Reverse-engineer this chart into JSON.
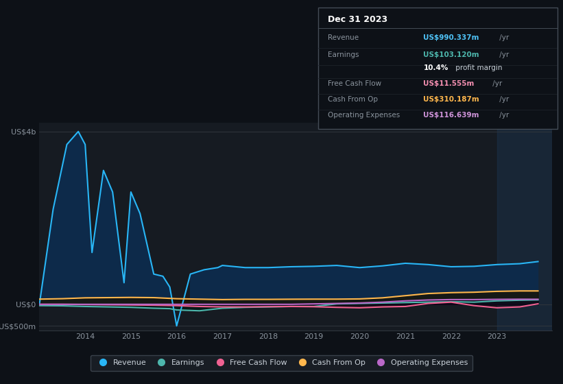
{
  "bg_color": "#0d1117",
  "plot_bg_color": "#161b22",
  "grid_color": "#30363d",
  "axis_label_color": "#8b949e",
  "text_color": "#c9d1d9",
  "white_color": "#ffffff",
  "x_tick_labels": [
    "2014",
    "2015",
    "2016",
    "2017",
    "2018",
    "2019",
    "2020",
    "2021",
    "2022",
    "2023"
  ],
  "info_box": {
    "title": "Dec 31 2023",
    "rows": [
      {
        "label": "Revenue",
        "value": "US$990.337m",
        "value_color": "#4fc3f7"
      },
      {
        "label": "Earnings",
        "value": "US$103.120m",
        "value_color": "#4db6ac"
      },
      {
        "label": "",
        "value": "10.4% profit margin",
        "value_color": "#c9d1d9"
      },
      {
        "label": "Free Cash Flow",
        "value": "US$11.555m",
        "value_color": "#f48fb1"
      },
      {
        "label": "Cash From Op",
        "value": "US$310.187m",
        "value_color": "#ffb74d"
      },
      {
        "label": "Operating Expenses",
        "value": "US$116.639m",
        "value_color": "#ce93d8"
      }
    ]
  },
  "series": {
    "revenue": {
      "color": "#29b6f6",
      "fill_color": "#0d2a4a",
      "label": "Revenue",
      "data_x": [
        2013.0,
        2013.3,
        2013.6,
        2013.85,
        2014.0,
        2014.15,
        2014.4,
        2014.6,
        2014.85,
        2015.0,
        2015.2,
        2015.5,
        2015.7,
        2015.85,
        2016.0,
        2016.3,
        2016.6,
        2016.9,
        2017.0,
        2017.5,
        2018.0,
        2018.5,
        2019.0,
        2019.5,
        2020.0,
        2020.5,
        2021.0,
        2021.5,
        2022.0,
        2022.5,
        2023.0,
        2023.5,
        2023.9
      ],
      "data_y": [
        0,
        2200,
        3700,
        4000,
        3700,
        1200,
        3100,
        2600,
        500,
        2600,
        2100,
        700,
        650,
        400,
        -500,
        700,
        800,
        850,
        900,
        850,
        850,
        870,
        880,
        900,
        850,
        890,
        950,
        920,
        870,
        880,
        920,
        940,
        990
      ]
    },
    "earnings": {
      "color": "#4db6ac",
      "label": "Earnings",
      "data_x": [
        2013.0,
        2013.5,
        2014.0,
        2014.5,
        2015.0,
        2015.5,
        2015.85,
        2016.0,
        2016.5,
        2017.0,
        2017.5,
        2018.0,
        2018.5,
        2019.0,
        2019.5,
        2020.0,
        2020.5,
        2021.0,
        2021.5,
        2022.0,
        2022.5,
        2023.0,
        2023.5,
        2023.9
      ],
      "data_y": [
        -30,
        -35,
        -50,
        -60,
        -70,
        -90,
        -100,
        -130,
        -150,
        -90,
        -70,
        -60,
        -50,
        -50,
        10,
        20,
        30,
        40,
        50,
        60,
        50,
        80,
        95,
        103
      ]
    },
    "free_cash_flow": {
      "color": "#f06292",
      "label": "Free Cash Flow",
      "data_x": [
        2013.0,
        2013.5,
        2014.0,
        2014.5,
        2015.0,
        2015.5,
        2016.0,
        2016.5,
        2017.0,
        2017.5,
        2018.0,
        2018.5,
        2019.0,
        2019.5,
        2020.0,
        2020.5,
        2021.0,
        2021.5,
        2022.0,
        2022.5,
        2023.0,
        2023.5,
        2023.9
      ],
      "data_y": [
        0,
        0,
        -5,
        -10,
        -15,
        -20,
        -30,
        -50,
        -60,
        -60,
        -55,
        -50,
        -55,
        -70,
        -80,
        -60,
        -50,
        20,
        50,
        -30,
        -80,
        -60,
        12
      ]
    },
    "cash_from_op": {
      "color": "#ffb74d",
      "label": "Cash From Op",
      "data_x": [
        2013.0,
        2013.5,
        2014.0,
        2014.5,
        2015.0,
        2015.5,
        2016.0,
        2016.5,
        2017.0,
        2017.5,
        2018.0,
        2018.5,
        2019.0,
        2019.5,
        2020.0,
        2020.5,
        2021.0,
        2021.5,
        2022.0,
        2022.5,
        2023.0,
        2023.5,
        2023.9
      ],
      "data_y": [
        120,
        130,
        150,
        155,
        160,
        155,
        130,
        120,
        110,
        115,
        115,
        118,
        120,
        120,
        125,
        150,
        200,
        250,
        270,
        280,
        300,
        310,
        310
      ]
    },
    "operating_expenses": {
      "color": "#ba68c8",
      "label": "Operating Expenses",
      "data_x": [
        2013.0,
        2013.5,
        2014.0,
        2014.5,
        2015.0,
        2015.5,
        2016.0,
        2016.5,
        2017.0,
        2017.5,
        2018.0,
        2018.5,
        2019.0,
        2019.5,
        2020.0,
        2020.5,
        2021.0,
        2021.5,
        2022.0,
        2022.5,
        2023.0,
        2023.5,
        2023.9
      ],
      "data_y": [
        0,
        0,
        0,
        0,
        0,
        0,
        0,
        0,
        0,
        0,
        0,
        0,
        10,
        20,
        30,
        50,
        80,
        100,
        110,
        110,
        115,
        118,
        117
      ]
    }
  },
  "ylim": [
    -600,
    4200
  ],
  "xlim": [
    2013.0,
    2024.2
  ],
  "shade_right_x": 2023.0,
  "legend_items": [
    {
      "label": "Revenue",
      "color": "#29b6f6"
    },
    {
      "label": "Earnings",
      "color": "#4db6ac"
    },
    {
      "label": "Free Cash Flow",
      "color": "#f06292"
    },
    {
      "label": "Cash From Op",
      "color": "#ffb74d"
    },
    {
      "label": "Operating Expenses",
      "color": "#ba68c8"
    }
  ]
}
